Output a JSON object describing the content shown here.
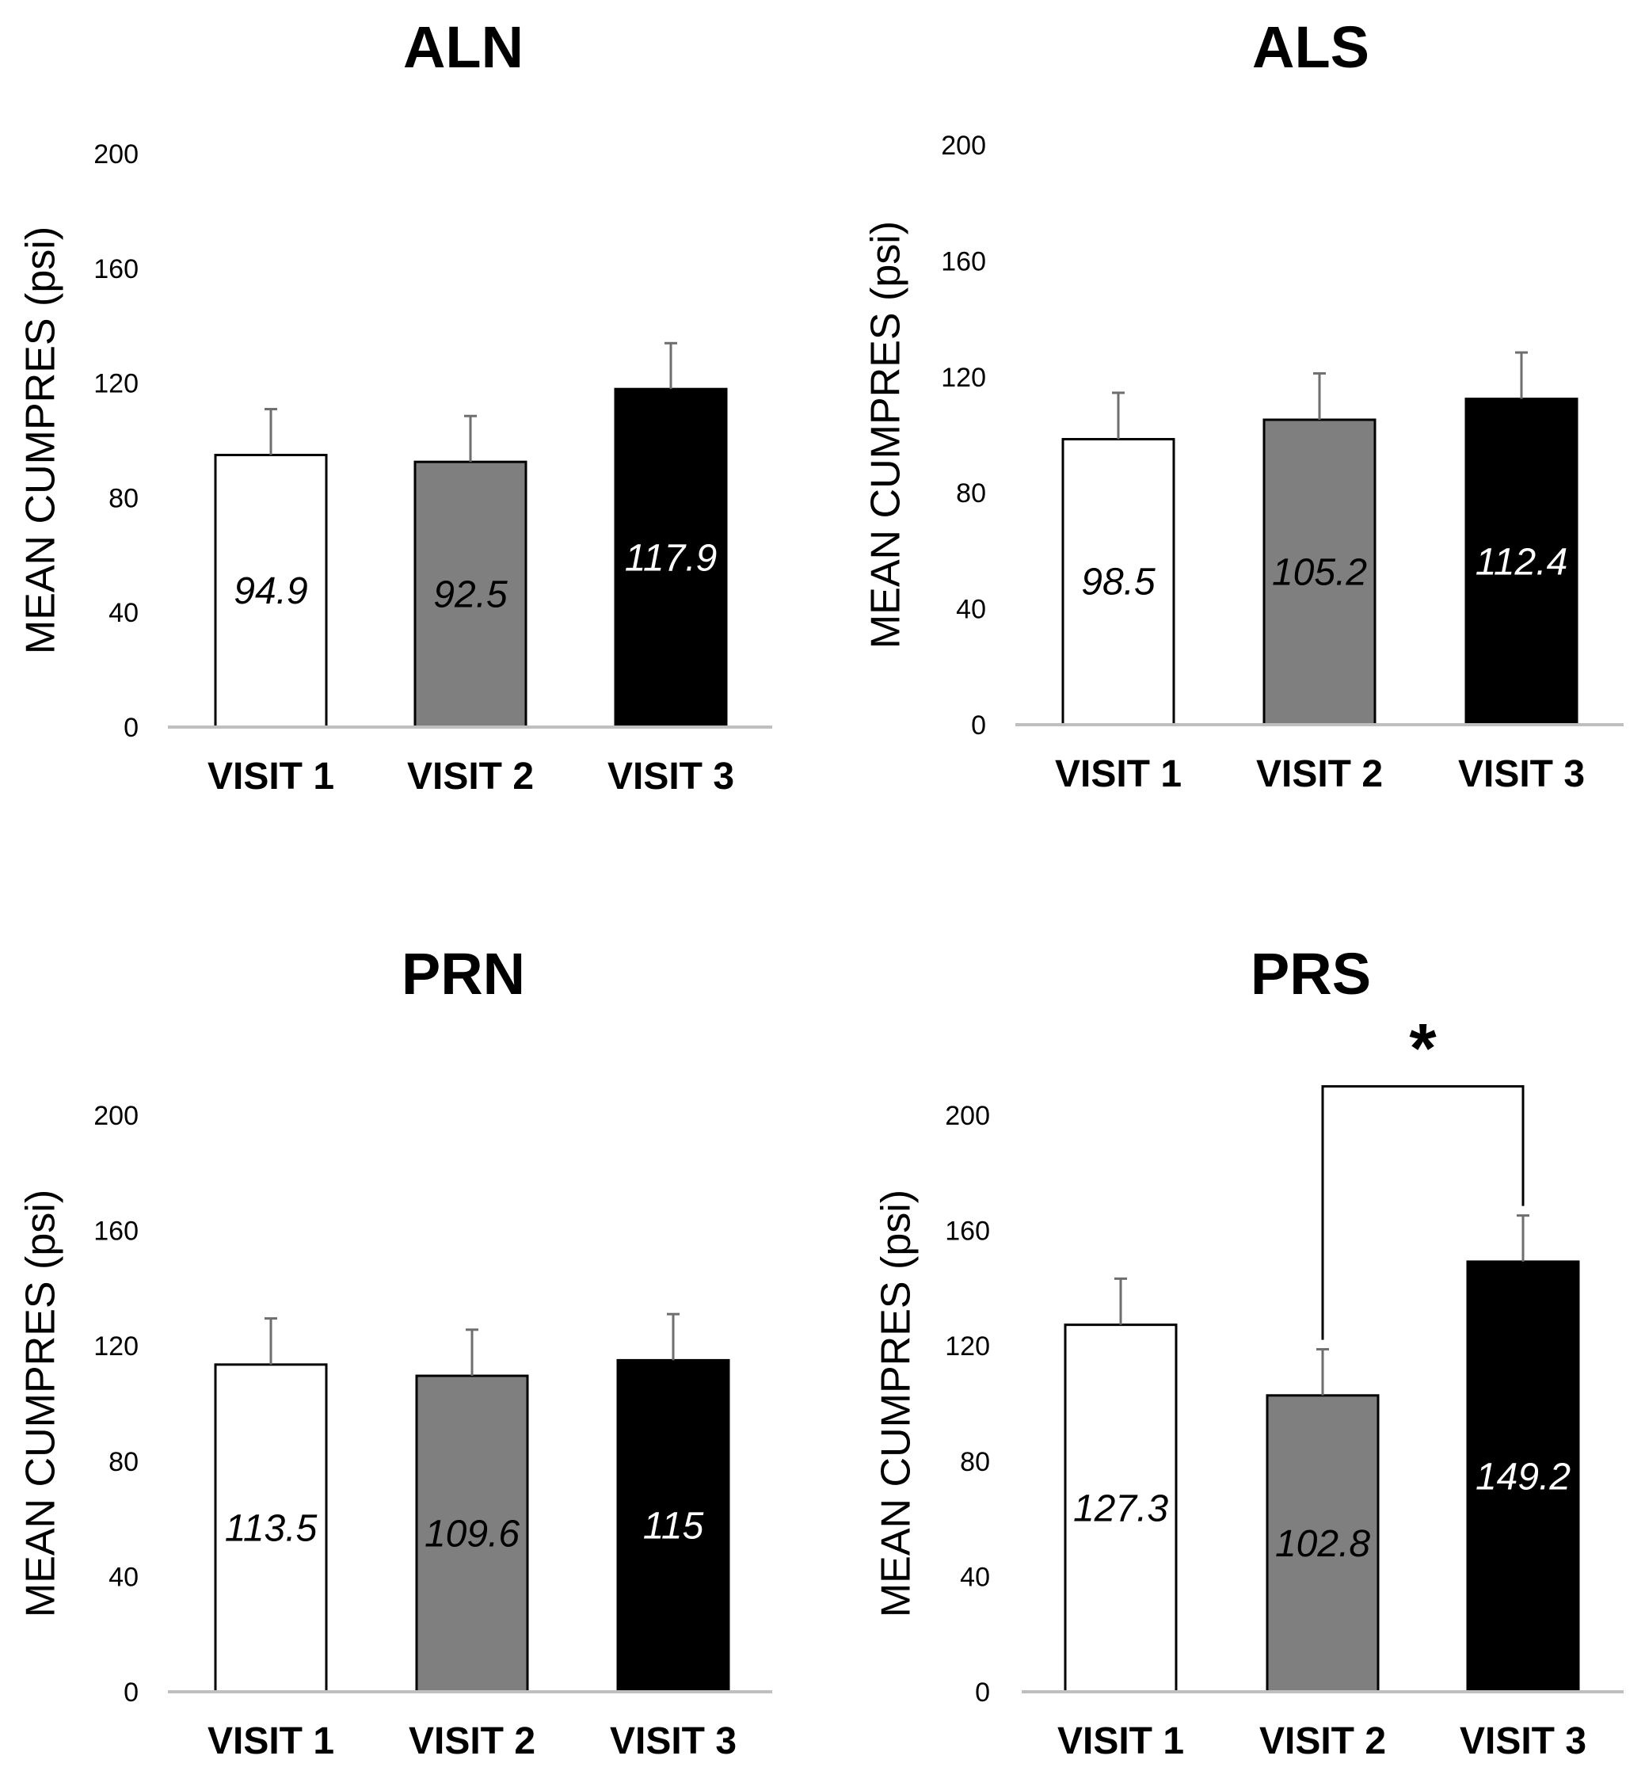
{
  "chart_data": [
    {
      "type": "bar",
      "title": "ALN",
      "ylabel": "MEAN CUMPRES (psi)",
      "xlabel": "",
      "categories": [
        "VISIT 1",
        "VISIT 2",
        "VISIT 3"
      ],
      "values": [
        94.9,
        92.5,
        117.9
      ],
      "value_labels": [
        "94.9",
        "92.5",
        "117.9"
      ],
      "errors": [
        16,
        16,
        16
      ],
      "ylim": [
        0,
        200
      ],
      "yticks": [
        "0",
        "40",
        "80",
        "120",
        "160",
        "200"
      ],
      "bar_colors": [
        "#ffffff",
        "#7f7f7f",
        "#000000"
      ],
      "label_colors": [
        "#000000",
        "#000000",
        "#ffffff"
      ]
    },
    {
      "type": "bar",
      "title": "ALS",
      "ylabel": "MEAN CUMPRES (psi)",
      "xlabel": "",
      "categories": [
        "VISIT 1",
        "VISIT 2",
        "VISIT 3"
      ],
      "values": [
        98.5,
        105.2,
        112.4
      ],
      "value_labels": [
        "98.5",
        "105.2",
        "112.4"
      ],
      "errors": [
        16,
        16,
        16
      ],
      "ylim": [
        0,
        200
      ],
      "yticks": [
        "0",
        "40",
        "80",
        "120",
        "160",
        "200"
      ],
      "bar_colors": [
        "#ffffff",
        "#7f7f7f",
        "#000000"
      ],
      "label_colors": [
        "#000000",
        "#000000",
        "#ffffff"
      ]
    },
    {
      "type": "bar",
      "title": "PRN",
      "ylabel": "MEAN CUMPRES (psi)",
      "xlabel": "",
      "categories": [
        "VISIT 1",
        "VISIT 2",
        "VISIT 3"
      ],
      "values": [
        113.5,
        109.6,
        115
      ],
      "value_labels": [
        "113.5",
        "109.6",
        "115"
      ],
      "errors": [
        16,
        16,
        16
      ],
      "ylim": [
        0,
        200
      ],
      "yticks": [
        "0",
        "40",
        "80",
        "120",
        "160",
        "200"
      ],
      "bar_colors": [
        "#ffffff",
        "#7f7f7f",
        "#000000"
      ],
      "label_colors": [
        "#000000",
        "#000000",
        "#ffffff"
      ]
    },
    {
      "type": "bar",
      "title": "PRS",
      "ylabel": "MEAN CUMPRES (psi)",
      "xlabel": "",
      "categories": [
        "VISIT 1",
        "VISIT 2",
        "VISIT 3"
      ],
      "values": [
        127.3,
        102.8,
        149.2
      ],
      "value_labels": [
        "127.3",
        "102.8",
        "149.2"
      ],
      "errors": [
        16,
        16,
        16
      ],
      "ylim": [
        0,
        200
      ],
      "yticks": [
        "0",
        "40",
        "80",
        "120",
        "160",
        "200"
      ],
      "bar_colors": [
        "#ffffff",
        "#7f7f7f",
        "#000000"
      ],
      "label_colors": [
        "#000000",
        "#000000",
        "#ffffff"
      ],
      "significance": {
        "between": [
          "VISIT 2",
          "VISIT 3"
        ],
        "symbol": "*"
      }
    }
  ]
}
